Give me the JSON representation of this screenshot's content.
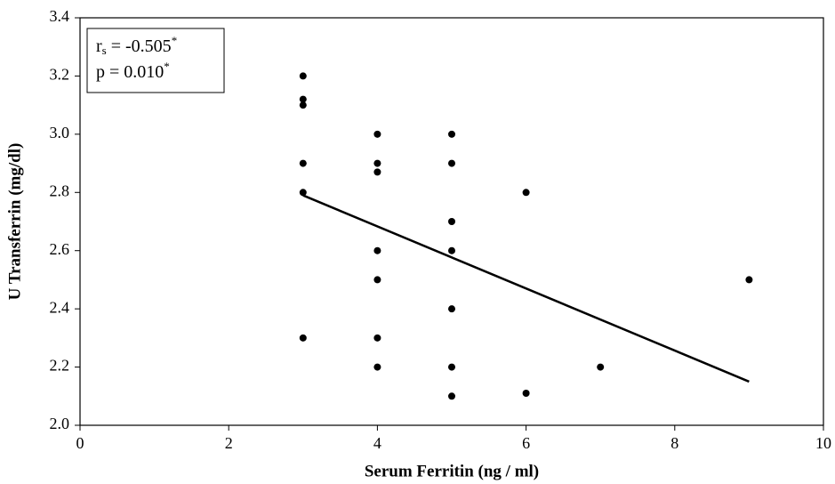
{
  "chart_data": {
    "type": "scatter",
    "xlabel": "Serum Ferritin (ng / ml)",
    "ylabel": "U Transferrin (mg/dl)",
    "series": [
      {
        "color": "#000000",
        "x": [
          3,
          3,
          3,
          3,
          3,
          3,
          4,
          4,
          4,
          4,
          4,
          4,
          4,
          5,
          5,
          5,
          5,
          5,
          5,
          5,
          6,
          6,
          7,
          9
        ],
        "values": [
          3.2,
          3.12,
          3.1,
          2.9,
          2.8,
          2.3,
          3.0,
          2.9,
          2.87,
          2.6,
          2.5,
          2.3,
          2.2,
          3.0,
          2.9,
          2.7,
          2.6,
          2.4,
          2.2,
          2.1,
          2.8,
          2.11,
          2.2,
          2.5
        ]
      }
    ],
    "trendline": {
      "color": "#000000",
      "x": [
        3,
        9
      ],
      "values": [
        2.79,
        2.15
      ]
    },
    "annotation": [
      {
        "text": "r",
        "sub": "s",
        "rest": " = -0.505",
        "sup": "*"
      },
      {
        "text": "p = 0.010",
        "sup": "*"
      }
    ],
    "xlim": [
      0,
      10
    ],
    "xticks": [
      0,
      2,
      4,
      6,
      8,
      10
    ],
    "ylim": [
      2,
      3.4
    ],
    "yticks": [
      {
        "value": 2,
        "label": "2.0"
      },
      {
        "value": 2.2,
        "label": "2.2"
      },
      {
        "value": 2.4,
        "label": "2.4"
      },
      {
        "value": 2.6,
        "label": "2.6"
      },
      {
        "value": 2.8,
        "label": "2.8"
      },
      {
        "value": 3,
        "label": "3.0"
      },
      {
        "value": 3.2,
        "label": "3.2"
      },
      {
        "value": 3.4,
        "label": "3.4"
      }
    ],
    "grid": false
  }
}
